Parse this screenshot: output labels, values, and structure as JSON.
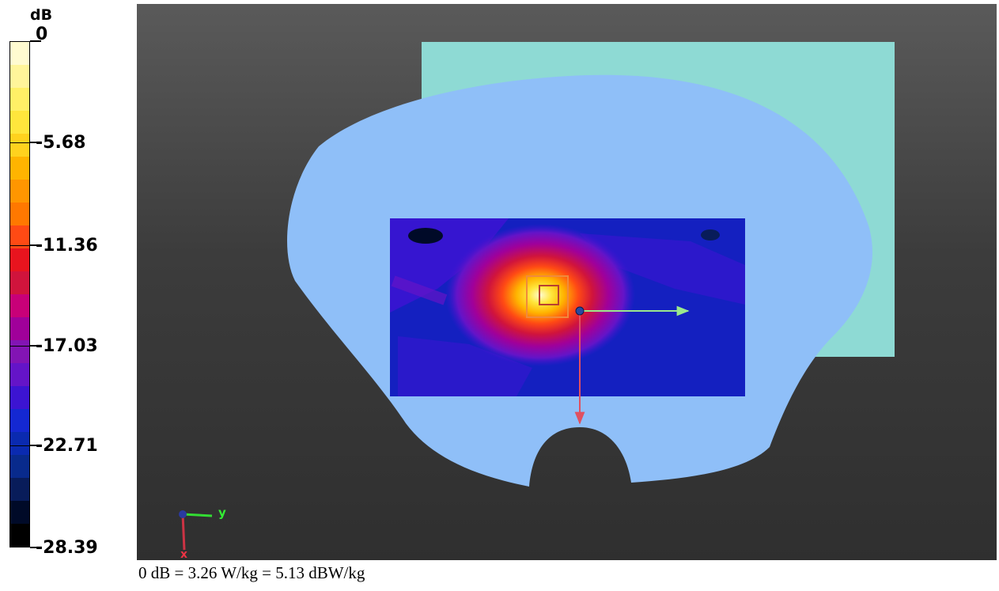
{
  "colorbar": {
    "unit": "dB",
    "tick_labels": [
      "0",
      "-5.68",
      "-11.36",
      "-17.03",
      "-22.71",
      "-28.39"
    ],
    "segment_colors": [
      "#fffbd0",
      "#fff59a",
      "#fff066",
      "#ffe63c",
      "#ffd21e",
      "#ffb400",
      "#ff9600",
      "#ff7800",
      "#ff4a14",
      "#e8141e",
      "#d0143c",
      "#c80078",
      "#a0009a",
      "#8214b4",
      "#6414c8",
      "#3c14d2",
      "#1428d2",
      "#0a2ab0",
      "#082a8c",
      "#081c5a",
      "#000a28",
      "#000000"
    ]
  },
  "scene": {
    "phantom_color": "#8fbff8",
    "plate_color": "#8edad4",
    "axis_labels": {
      "y": "y",
      "x": "x"
    }
  },
  "footnote": "0 dB = 3.26 W/kg = 5.13 dBW/kg"
}
